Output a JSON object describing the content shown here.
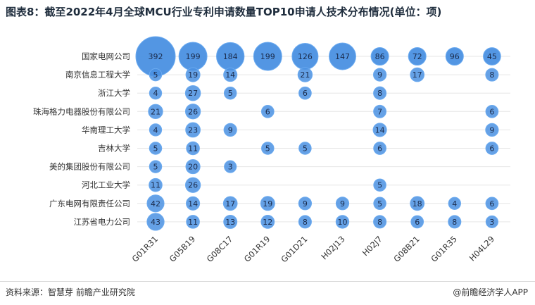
{
  "page": {
    "source": "资料来源：智慧芽 前瞻产业研究院",
    "brand": "@前瞻经济学人APP"
  },
  "colors": {
    "bubble": "#4a90e2",
    "bubble_highlight": "#6aaaf0",
    "label": "#1a2a4a"
  },
  "chart_data": {
    "type": "scatter",
    "subtype": "bubble-matrix",
    "title": "图表8：截至2022年4月全球MCU行业专利申请数量TOP10申请人技术分布情况(单位：项)",
    "x_categories": [
      "G01R31",
      "G05B19",
      "G08C17",
      "G01R19",
      "G01D21",
      "H02J13",
      "H02J7",
      "G08B21",
      "G01R35",
      "H04L29"
    ],
    "y_categories": [
      "国家电网公司",
      "南京信息工程大学",
      "浙江大学",
      "珠海格力电器股份有限公司",
      "华南理工大学",
      "吉林大学",
      "美的集团股份有限公司",
      "河北工业大学",
      "广东电网有限责任公司",
      "江苏省电力公司"
    ],
    "values": [
      [
        392,
        199,
        184,
        199,
        126,
        147,
        86,
        72,
        96,
        45
      ],
      [
        5,
        19,
        14,
        null,
        21,
        null,
        9,
        17,
        null,
        8
      ],
      [
        4,
        27,
        5,
        null,
        6,
        null,
        8,
        null,
        null,
        null
      ],
      [
        21,
        26,
        null,
        6,
        null,
        null,
        7,
        null,
        null,
        6
      ],
      [
        4,
        23,
        9,
        null,
        null,
        null,
        14,
        null,
        null,
        9
      ],
      [
        5,
        11,
        null,
        5,
        5,
        null,
        6,
        null,
        null,
        6
      ],
      [
        5,
        20,
        3,
        null,
        null,
        null,
        null,
        null,
        null,
        null
      ],
      [
        11,
        26,
        null,
        null,
        null,
        null,
        5,
        null,
        null,
        null
      ],
      [
        42,
        14,
        17,
        19,
        9,
        9,
        5,
        18,
        4,
        6
      ],
      [
        43,
        11,
        13,
        12,
        8,
        10,
        8,
        6,
        8,
        3
      ]
    ],
    "grid": true,
    "legend": "none"
  }
}
